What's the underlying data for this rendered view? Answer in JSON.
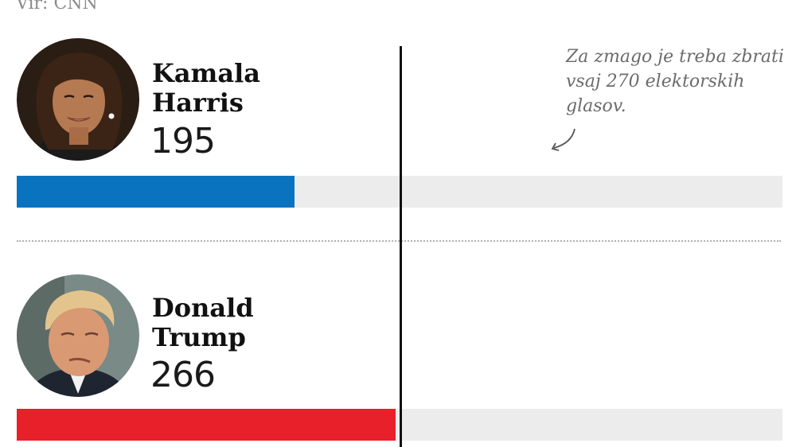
{
  "source_text": "Vir: CNN",
  "note": "Za zmago je treba zbrati vsaj 270 elektorskih glasov.",
  "chart_data": {
    "type": "bar",
    "orientation": "horizontal",
    "categories": [
      "Kamala Harris",
      "Donald Trump"
    ],
    "values": [
      195,
      266
    ],
    "xlim": [
      0,
      538
    ],
    "threshold": 270,
    "series": [
      {
        "name": "Kamala Harris",
        "first": "Kamala",
        "last": "Harris",
        "value": 195,
        "value_label": "195",
        "color": "#0a73c0"
      },
      {
        "name": "Donald Trump",
        "first": "Donald",
        "last": "Trump",
        "value": 266,
        "value_label": "266",
        "color": "#e8202a"
      }
    ]
  },
  "colors": {
    "track": "#ececec",
    "threshold_line": "#111111",
    "note": "#6b6b6b"
  }
}
